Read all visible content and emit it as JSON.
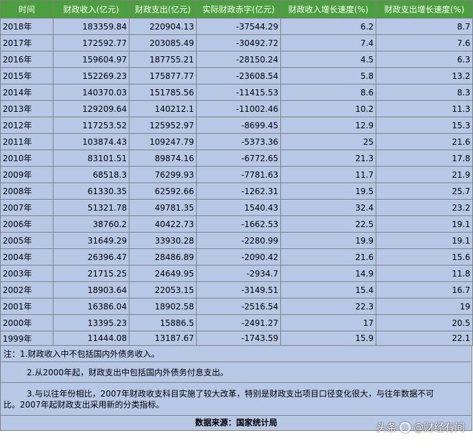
{
  "columns": [
    "时间",
    "财政收入(亿元)",
    "财政支出(亿元)",
    "实际财政赤字(亿元)",
    "财政收入增长速度(%)",
    "财政支出增长速度(%)"
  ],
  "rows": [
    [
      "2018年",
      "183359.84",
      "220904.13",
      "-37544.29",
      "6.2",
      "8.7"
    ],
    [
      "2017年",
      "172592.77",
      "203085.49",
      "-30492.72",
      "7.4",
      "7.6"
    ],
    [
      "2016年",
      "159604.97",
      "187755.21",
      "-28150.24",
      "4.5",
      "6.3"
    ],
    [
      "2015年",
      "152269.23",
      "175877.77",
      "-23608.54",
      "5.8",
      "13.2"
    ],
    [
      "2014年",
      "140370.03",
      "151785.56",
      "-11415.53",
      "8.6",
      "8.3"
    ],
    [
      "2013年",
      "129209.64",
      "140212.1",
      "-11002.46",
      "10.2",
      "11.3"
    ],
    [
      "2012年",
      "117253.52",
      "125952.97",
      "-8699.45",
      "12.9",
      "15.3"
    ],
    [
      "2011年",
      "103874.43",
      "109247.79",
      "-5373.36",
      "25",
      "21.6"
    ],
    [
      "2010年",
      "83101.51",
      "89874.16",
      "-6772.65",
      "21.3",
      "17.8"
    ],
    [
      "2009年",
      "68518.3",
      "76299.93",
      "-7781.63",
      "11.7",
      "21.9"
    ],
    [
      "2008年",
      "61330.35",
      "62592.66",
      "-1262.31",
      "19.5",
      "25.7"
    ],
    [
      "2007年",
      "51321.78",
      "49781.35",
      "1540.43",
      "32.4",
      "23.2"
    ],
    [
      "2006年",
      "38760.2",
      "40422.73",
      "-1662.53",
      "22.5",
      "19.1"
    ],
    [
      "2005年",
      "31649.29",
      "33930.28",
      "-2280.99",
      "19.9",
      "19.1"
    ],
    [
      "2004年",
      "26396.47",
      "28486.89",
      "-2090.42",
      "21.6",
      "15.6"
    ],
    [
      "2003年",
      "21715.25",
      "24649.95",
      "-2934.7",
      "14.9",
      "11.8"
    ],
    [
      "2002年",
      "18903.64",
      "22053.15",
      "-3149.51",
      "15.4",
      "16.7"
    ],
    [
      "2001年",
      "16386.04",
      "18902.58",
      "-2516.54",
      "22.3",
      "19"
    ],
    [
      "2000年",
      "13395.23",
      "15886.5",
      "-2491.27",
      "17",
      "20.5"
    ],
    [
      "1999年",
      "11444.08",
      "13187.67",
      "-1743.59",
      "15.9",
      "22.1"
    ]
  ],
  "notes": {
    "note1": "注：1.财政收入中不包括国内外债务收入。",
    "note2": "2.从2000年起，财政支出中包括国内外债务付息支出。",
    "note3_line1": "3.与以往年份相比，2007年财政收支科目实施了较大改革，特别是财政支出项目口径变化很大，与往年数据不可",
    "note3_line2": "比。2007年起财政支出采用新的分类指标。"
  },
  "source": "数据来源：国家统计局",
  "watermark": {
    "prefix": "头条",
    "handle": "@财经有间"
  },
  "colors": {
    "header_bg": "#4c9f3e",
    "cell_bg": "#b7c7e6",
    "border": "#7f7f7f"
  }
}
